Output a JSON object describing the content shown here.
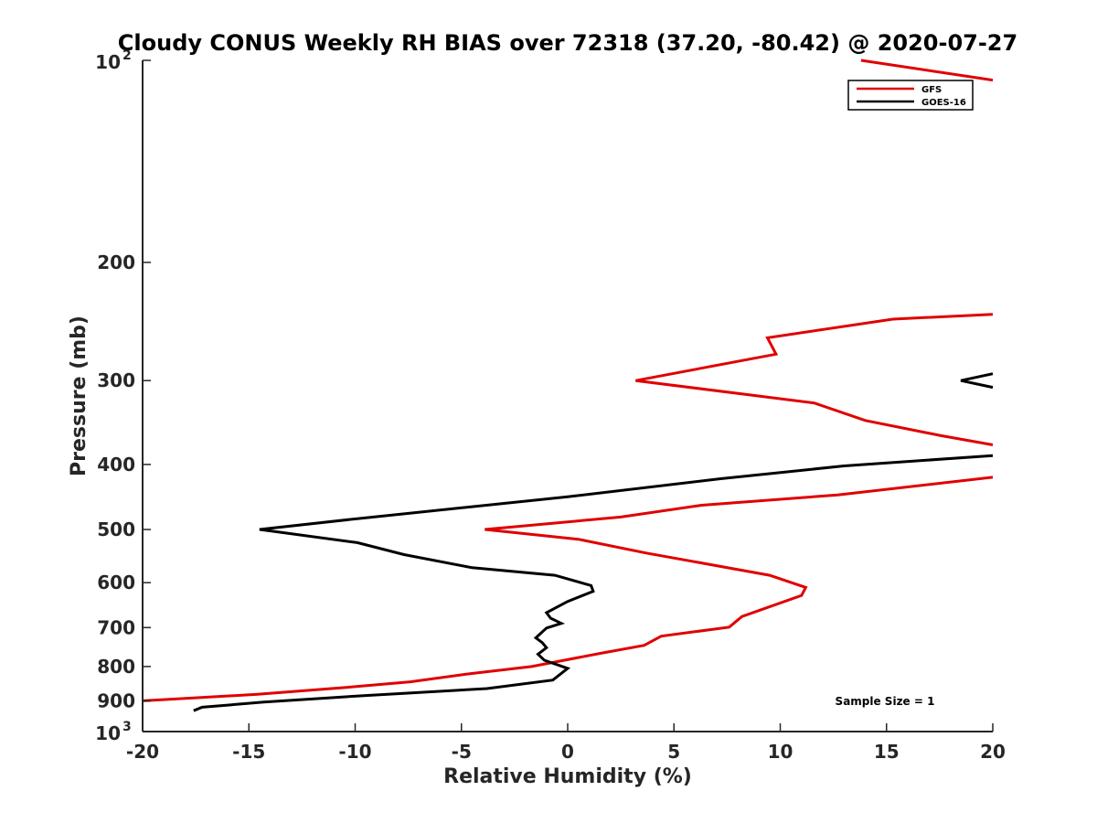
{
  "chart_data": {
    "type": "line",
    "title": "Cloudy CONUS Weekly RH BIAS over 72318 (37.20, -80.42) @ 2020-07-27",
    "xlabel": "Relative Humidity (%)",
    "ylabel": "Pressure (mb)",
    "xlim": [
      -20,
      20
    ],
    "ylim": [
      100,
      1000
    ],
    "yscale": "log",
    "yreversed": true,
    "x_ticks": [
      -20,
      -15,
      -10,
      -5,
      0,
      5,
      10,
      15,
      20
    ],
    "x_tick_labels": [
      "-20",
      "-15",
      "-10",
      "-5",
      "0",
      "5",
      "10",
      "15",
      "20"
    ],
    "y_ticks": [
      {
        "value": 100,
        "base": "10",
        "exp": "2"
      },
      {
        "value": 200,
        "label": "200"
      },
      {
        "value": 300,
        "label": "300"
      },
      {
        "value": 400,
        "label": "400"
      },
      {
        "value": 500,
        "label": "500"
      },
      {
        "value": 600,
        "label": "600"
      },
      {
        "value": 700,
        "label": "700"
      },
      {
        "value": 800,
        "label": "800"
      },
      {
        "value": 900,
        "label": "900"
      },
      {
        "value": 1000,
        "base": "10",
        "exp": "3"
      }
    ],
    "legend_position": "top-right",
    "annotation": "Sample Size = 1",
    "series": [
      {
        "name": "GFS",
        "color": "#e00000",
        "segments": [
          [
            [
              13.8,
              100
            ],
            [
              20.0,
              107
            ]
          ],
          [
            [
              20.0,
              239
            ],
            [
              15.3,
              243
            ],
            [
              9.4,
              259
            ],
            [
              9.8,
              274
            ],
            [
              3.2,
              300
            ],
            [
              11.6,
              324
            ],
            [
              14.0,
              344
            ],
            [
              17.5,
              362
            ],
            [
              20.0,
              374
            ]
          ],
          [
            [
              20.0,
              418
            ],
            [
              12.7,
              444
            ],
            [
              6.3,
              460
            ],
            [
              2.5,
              479
            ],
            [
              -3.9,
              500
            ],
            [
              0.5,
              517
            ],
            [
              3.7,
              542
            ],
            [
              9.5,
              585
            ],
            [
              11.2,
              610
            ],
            [
              11.0,
              627
            ],
            [
              8.2,
              674
            ],
            [
              7.6,
              699
            ],
            [
              4.4,
              721
            ],
            [
              3.6,
              744
            ],
            [
              1.5,
              765
            ],
            [
              -1.7,
              800
            ],
            [
              -4.6,
              820
            ],
            [
              -7.4,
              843
            ],
            [
              -10.5,
              860
            ],
            [
              -14.6,
              880
            ],
            [
              -20.0,
              900
            ]
          ]
        ]
      },
      {
        "name": "GOES-16",
        "color": "#000000",
        "segments": [
          [
            [
              20.0,
              293
            ],
            [
              18.5,
              300
            ],
            [
              20.0,
              307
            ]
          ],
          [
            [
              20.0,
              388
            ],
            [
              13.0,
              402
            ],
            [
              7.2,
              420
            ],
            [
              0.0,
              447
            ],
            [
              -9.7,
              481
            ],
            [
              -14.5,
              500
            ],
            [
              -9.9,
              523
            ],
            [
              -7.7,
              545
            ],
            [
              -4.5,
              570
            ],
            [
              -0.6,
              585
            ],
            [
              1.1,
              606
            ],
            [
              1.2,
              618
            ],
            [
              0.0,
              640
            ],
            [
              -1.0,
              665
            ],
            [
              -0.8,
              678
            ],
            [
              -0.3,
              690
            ],
            [
              -1.0,
              701
            ],
            [
              -1.5,
              725
            ],
            [
              -1.2,
              737
            ],
            [
              -1.0,
              750
            ],
            [
              -1.4,
              767
            ],
            [
              -1.1,
              783
            ],
            [
              0.0,
              805
            ],
            [
              -0.7,
              838
            ],
            [
              -3.8,
              863
            ],
            [
              -9.6,
              884
            ],
            [
              -14.3,
              904
            ],
            [
              -17.2,
              920
            ],
            [
              -17.6,
              931
            ]
          ]
        ]
      }
    ]
  }
}
